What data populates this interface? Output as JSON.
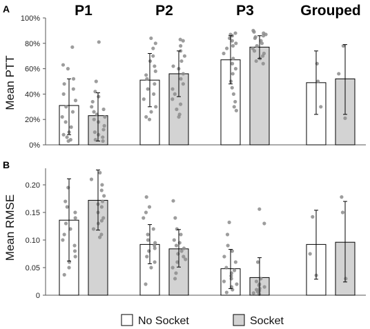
{
  "chart_data": [
    {
      "panel": "A",
      "type": "bar",
      "ylabel": "Mean PTT",
      "ylim": [
        0,
        100
      ],
      "yticks": [
        "0%",
        "20%",
        "40%",
        "60%",
        "80%",
        "100%"
      ],
      "groups": [
        "P1",
        "P2",
        "P3",
        "Grouped"
      ],
      "series": [
        {
          "name": "No Socket",
          "values": [
            31,
            51,
            67,
            49
          ],
          "err_low": [
            8,
            30,
            48,
            24
          ],
          "err_high": [
            52,
            72,
            86,
            74
          ],
          "points": [
            [
              77,
              63,
              60,
              52,
              48,
              44,
              40,
              35,
              30,
              26,
              22,
              18,
              14,
              10,
              8,
              6,
              4,
              3
            ],
            [
              84,
              80,
              76,
              70,
              66,
              62,
              58,
              55,
              52,
              48,
              44,
              40,
              36,
              30,
              26,
              22,
              20
            ],
            [
              88,
              87,
              86,
              84,
              82,
              80,
              78,
              76,
              72,
              68,
              64,
              60,
              56,
              50,
              45,
              40,
              34,
              30,
              27
            ],
            [
              64,
              50,
              30
            ]
          ]
        },
        {
          "name": "Socket",
          "values": [
            23,
            56,
            77,
            52
          ],
          "err_low": [
            3,
            38,
            68,
            24
          ],
          "err_high": [
            41,
            74,
            86,
            79
          ],
          "points": [
            [
              81,
              50,
              42,
              38,
              34,
              30,
              28,
              26,
              24,
              22,
              20,
              18,
              15,
              12,
              10,
              8,
              6,
              4,
              3
            ],
            [
              83,
              82,
              78,
              74,
              70,
              66,
              62,
              60,
              56,
              52,
              48,
              44,
              40,
              36,
              32,
              28,
              24,
              22
            ],
            [
              90,
              89,
              88,
              87,
              86,
              85,
              84,
              82,
              80,
              78,
              76,
              74,
              72,
              70,
              68,
              66,
              64
            ],
            [
              78,
              56,
              21
            ]
          ]
        }
      ]
    },
    {
      "panel": "B",
      "type": "bar",
      "ylabel": "Mean RMSE",
      "ylim": [
        0,
        0.23
      ],
      "yticks": [
        "0",
        "0.05",
        "0.10",
        "0.15",
        "0.20"
      ],
      "groups": [
        "P1",
        "P2",
        "P3",
        "Grouped"
      ],
      "series": [
        {
          "name": "No Socket",
          "values": [
            0.136,
            0.092,
            0.048,
            0.092
          ],
          "err_low": [
            0.062,
            0.057,
            0.012,
            0.029
          ],
          "err_high": [
            0.211,
            0.128,
            0.083,
            0.154
          ],
          "points": [
            [
              0.195,
              0.17,
              0.16,
              0.15,
              0.14,
              0.13,
              0.12,
              0.11,
              0.1,
              0.09,
              0.08,
              0.07,
              0.06,
              0.05,
              0.037
            ],
            [
              0.178,
              0.16,
              0.15,
              0.14,
              0.12,
              0.11,
              0.1,
              0.095,
              0.09,
              0.085,
              0.08,
              0.07,
              0.06,
              0.05,
              0.02
            ],
            [
              0.132,
              0.11,
              0.09,
              0.08,
              0.07,
              0.06,
              0.05,
              0.045,
              0.04,
              0.035,
              0.03,
              0.025,
              0.02,
              0.015,
              0.01,
              0.005
            ],
            [
              0.142,
              0.075,
              0.036
            ]
          ]
        },
        {
          "name": "Socket",
          "values": [
            0.172,
            0.084,
            0.032,
            0.096
          ],
          "err_low": [
            0.118,
            0.051,
            0.0,
            0.024
          ],
          "err_high": [
            0.227,
            0.119,
            0.068,
            0.17
          ],
          "points": [
            [
              0.222,
              0.21,
              0.2,
              0.19,
              0.18,
              0.17,
              0.165,
              0.16,
              0.15,
              0.14,
              0.135,
              0.13,
              0.12,
              0.11,
              0.105
            ],
            [
              0.171,
              0.14,
              0.12,
              0.11,
              0.1,
              0.095,
              0.09,
              0.085,
              0.08,
              0.075,
              0.07,
              0.065,
              0.06,
              0.05,
              0.04,
              0.03
            ],
            [
              0.156,
              0.13,
              0.06,
              0.03,
              0.025,
              0.02,
              0.018,
              0.015,
              0.012,
              0.01,
              0.008,
              0.006,
              0.004,
              0.002
            ],
            [
              0.178,
              0.15,
              0.03
            ]
          ]
        }
      ]
    }
  ],
  "panel_labels": {
    "a": "A",
    "b": "B"
  },
  "group_titles": [
    "P1",
    "P2",
    "P3",
    "Grouped"
  ],
  "legend": [
    {
      "label": "No Socket",
      "color": "#ffffff"
    },
    {
      "label": "Socket",
      "color": "#d3d3d3"
    }
  ],
  "colors": {
    "no_socket": "#ffffff",
    "socket": "#d3d3d3",
    "point": "#8c8c8c",
    "edge": "#000000"
  }
}
